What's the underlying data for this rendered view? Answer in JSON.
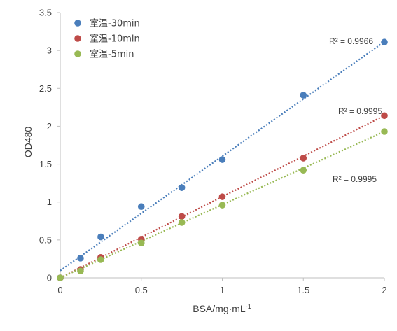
{
  "chart_data": {
    "type": "scatter",
    "xlabel": "BSA/mg·mL",
    "xlabel_sup": "-1",
    "ylabel": "OD480",
    "xlim": [
      0,
      2
    ],
    "ylim": [
      0,
      3.5
    ],
    "x_ticks": [
      0,
      0.5,
      1,
      1.5,
      2
    ],
    "y_ticks": [
      0,
      0.5,
      1,
      1.5,
      2,
      2.5,
      3,
      3.5
    ],
    "grid": false,
    "legend_position": "top-left",
    "series": [
      {
        "name": "室温-30min",
        "color": "#4a7ebb",
        "x": [
          0,
          0.125,
          0.25,
          0.5,
          0.75,
          1,
          1.5,
          2
        ],
        "y": [
          0,
          0.26,
          0.54,
          0.94,
          1.19,
          1.56,
          2.41,
          3.11
        ],
        "trendline": {
          "intercept": 0.095,
          "slope": 1.51
        },
        "r2_label": "R² = 0.9966"
      },
      {
        "name": "室温-10min",
        "color": "#be4b48",
        "x": [
          0,
          0.125,
          0.25,
          0.5,
          0.75,
          1,
          1.5,
          2
        ],
        "y": [
          0,
          0.11,
          0.27,
          0.51,
          0.81,
          1.07,
          1.58,
          2.14
        ],
        "trendline": {
          "intercept": 0.0,
          "slope": 1.07
        },
        "r2_label": "R² = 0.9995"
      },
      {
        "name": "室温-5min",
        "color": "#98b954",
        "x": [
          0,
          0.125,
          0.25,
          0.5,
          0.75,
          1,
          1.5,
          2
        ],
        "y": [
          0,
          0.09,
          0.24,
          0.46,
          0.73,
          0.96,
          1.42,
          1.93
        ],
        "trendline": {
          "intercept": 0.0,
          "slope": 0.965
        },
        "r2_label": "R² = 0.9995"
      }
    ]
  }
}
